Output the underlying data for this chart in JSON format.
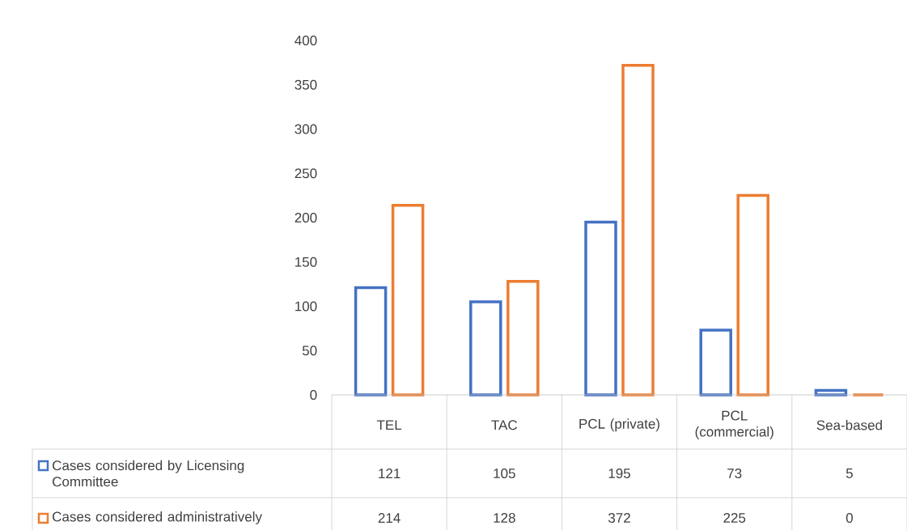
{
  "chart_data": {
    "type": "bar",
    "categories": [
      "TEL",
      "TAC",
      "PCL (private)",
      "PCL (commercial)",
      "Sea-based"
    ],
    "series": [
      {
        "name": "Cases considered by Licensing Committee",
        "color": "#4472c4",
        "values": [
          121,
          105,
          195,
          73,
          5
        ]
      },
      {
        "name": "Cases considered administratively",
        "color": "#ed7d31",
        "values": [
          214,
          128,
          372,
          225,
          0
        ]
      }
    ],
    "ylim": [
      0,
      400
    ],
    "yticks": [
      0,
      50,
      100,
      150,
      200,
      250,
      300,
      350,
      400
    ],
    "data_labels": true,
    "legend": "bottom"
  }
}
